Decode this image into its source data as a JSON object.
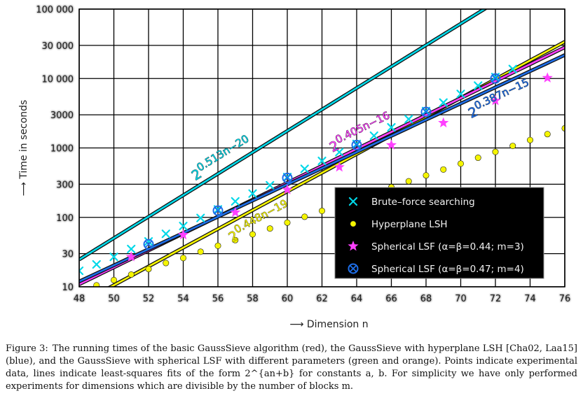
{
  "chart_data": {
    "type": "line",
    "xlabel": "⟶ Dimension n",
    "ylabel": "⟶ Time in seconds",
    "xlim": [
      48,
      76
    ],
    "ylim": [
      10,
      100000
    ],
    "yscale": "log",
    "grid": true,
    "legend_position": "bottom-right",
    "x_ticks": [
      48,
      50,
      52,
      54,
      56,
      58,
      60,
      62,
      64,
      66,
      68,
      70,
      72,
      74,
      76
    ],
    "y_ticks": [
      10,
      30,
      100,
      300,
      1000,
      3000,
      10000,
      30000,
      100000
    ],
    "y_tick_labels": [
      "10",
      "30",
      "100",
      "300",
      "1000",
      "3000",
      "10 000",
      "30 000",
      "100 000"
    ],
    "series": [
      {
        "name": "Brute–force searching",
        "color": "#00d8e8",
        "marker": "x",
        "fit": {
          "a": 0.513,
          "b": -20,
          "label": "2^{0.513n−20}"
        },
        "x": [
          48,
          49,
          50,
          51,
          52,
          53,
          54,
          55,
          56,
          57,
          58,
          59,
          60,
          61,
          62,
          63,
          64,
          65,
          66,
          67,
          68,
          69,
          70,
          71,
          72,
          73
        ],
        "y": [
          17,
          21,
          27,
          35,
          45,
          58,
          75,
          98,
          130,
          170,
          220,
          290,
          380,
          500,
          650,
          870,
          1140,
          1500,
          1980,
          2600,
          3400,
          4500,
          6000,
          7900,
          10500,
          13700
        ]
      },
      {
        "name": "Hyperplane LSH",
        "color": "#f5f500",
        "marker": "dot",
        "fit": {
          "a": 0.448,
          "b": -19,
          "label": "2^{0.448n−19}"
        },
        "x": [
          49,
          50,
          51,
          52,
          53,
          54,
          55,
          56,
          57,
          58,
          59,
          60,
          61,
          62,
          63,
          64,
          65,
          66,
          67,
          68,
          69,
          70,
          71,
          72,
          73,
          74,
          75,
          76
        ],
        "y": [
          10.5,
          12.5,
          15,
          18,
          22,
          26,
          32,
          39,
          47,
          57,
          69,
          84,
          102,
          124,
          151,
          184,
          224,
          272,
          331,
          402,
          489,
          594,
          722,
          878,
          1070,
          1300,
          1580,
          1920
        ]
      },
      {
        "name": "Spherical LSF (α=β=0.44; m=3)",
        "color": "#ff40ff",
        "marker": "star",
        "fit": {
          "a": 0.405,
          "b": -16,
          "label": "2^{0.405n−16}"
        },
        "x": [
          51,
          54,
          57,
          60,
          63,
          66,
          69,
          72,
          75
        ],
        "y": [
          27,
          56,
          118,
          250,
          530,
          1100,
          2300,
          4800,
          10200
        ]
      },
      {
        "name": "Spherical LSF (α=β=0.47; m=4)",
        "color": "#1e6ee8",
        "marker": "circle-x",
        "fit": {
          "a": 0.387,
          "b": -15,
          "label": "2^{0.387n−15}"
        },
        "x": [
          52,
          56,
          60,
          64,
          68,
          72
        ],
        "y": [
          41,
          125,
          370,
          1100,
          3300,
          10000
        ]
      }
    ]
  },
  "caption": {
    "label": "Figure 3:",
    "text": "The running times of the basic GaussSieve algorithm (red), the GaussSieve with hyperplane LSH [Cha02, Laa15] (blue), and the GaussSieve with spherical LSF with different parameters (green and orange). Points indicate experimental data, lines indicate least-squares fits of the form 2^{an+b} for constants a, b. For simplicity we have only performed experiments for dimensions which are divisible by the number of blocks m."
  }
}
